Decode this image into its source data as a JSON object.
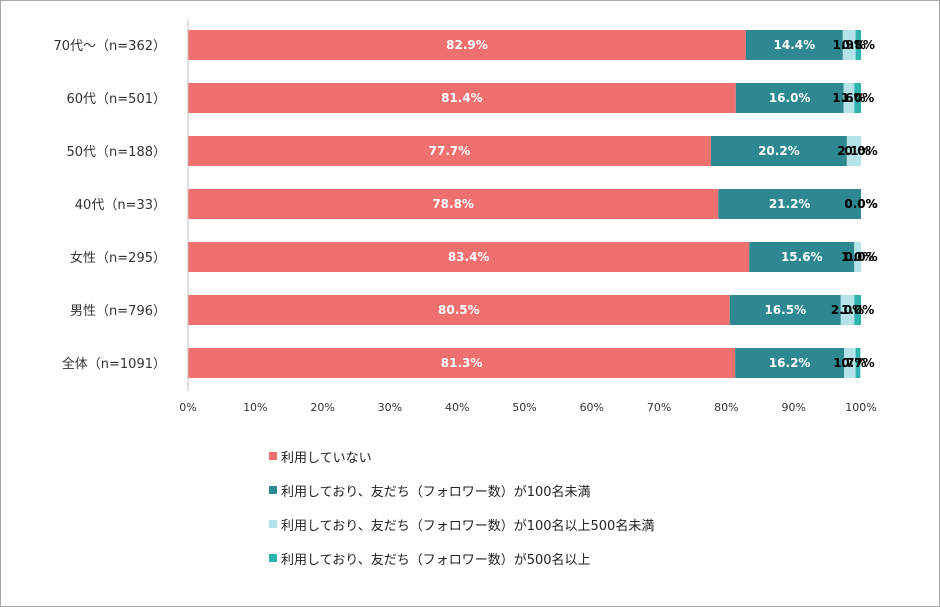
{
  "chart_data": {
    "type": "bar",
    "orientation": "horizontal",
    "stacked": true,
    "categories": [
      "70代～（n=362）",
      "60代（n=501）",
      "50代（n=188）",
      "40代（n=33）",
      "女性（n=295）",
      "男性（n=796）",
      "全体（n=1091）"
    ],
    "series": [
      {
        "name": "利用していない",
        "color": "#f07070",
        "label_color": "#ffffff",
        "values": [
          82.9,
          81.4,
          77.7,
          78.8,
          83.4,
          80.5,
          81.3
        ],
        "labels": [
          "82.9%",
          "81.4%",
          "77.7%",
          "78.8%",
          "83.4%",
          "80.5%",
          "81.3%"
        ]
      },
      {
        "name": "利用しており、友だち（フォロワー数）が100名未満",
        "color": "#2e8892",
        "label_color": "#ffffff",
        "values": [
          14.4,
          16.0,
          20.2,
          21.2,
          15.6,
          16.5,
          16.2
        ],
        "labels": [
          "14.4%",
          "16.0%",
          "20.2%",
          "21.2%",
          "15.6%",
          "16.5%",
          "16.2%"
        ]
      },
      {
        "name": "利用しており、友だち（フォロワー数）が100名以上500名未満",
        "color": "#b3e2e8",
        "label_color": "#000000",
        "values": [
          1.9,
          1.6,
          2.1,
          0.0,
          1.0,
          2.0,
          1.7
        ],
        "labels": [
          "1.9%",
          "1.6%",
          "2.1%",
          "0.0%",
          "1.0%",
          "2.0%",
          "1.7%"
        ]
      },
      {
        "name": "利用しており、友だち（フォロワー数）が500名以上",
        "color": "#2eb3b0",
        "label_color": "#000000",
        "values": [
          0.8,
          1.0,
          0.0,
          0.0,
          0.0,
          1.0,
          0.7
        ],
        "labels": [
          "0.8%",
          "1.0%",
          "0.0%",
          "0.0%",
          "0.0%",
          "1.0%",
          "0.7%"
        ]
      }
    ],
    "xlim": [
      0,
      100
    ],
    "x_ticks": [
      "0%",
      "10%",
      "20%",
      "30%",
      "40%",
      "50%",
      "60%",
      "70%",
      "80%",
      "90%",
      "100%"
    ],
    "grid": false,
    "legend_position": "bottom"
  }
}
